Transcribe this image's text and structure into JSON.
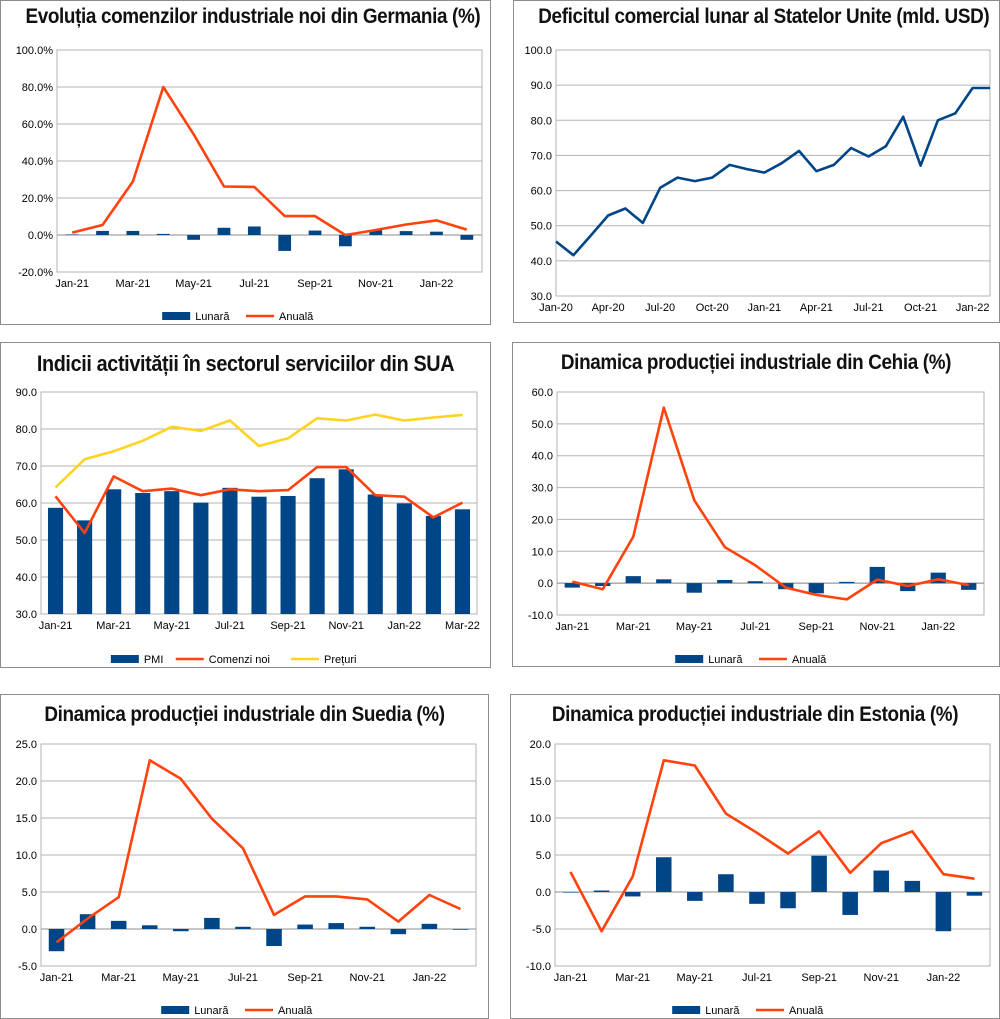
{
  "colors": {
    "bar": "#004586",
    "orange": "#ff420e",
    "yellow": "#ffd320",
    "line": "#004586",
    "grid": "#b3b3b3"
  },
  "chart_data": [
    {
      "id": "germany",
      "type": "bar+line",
      "title": "Evoluția comenzilor industriale noi din Germania (%)",
      "categories": [
        "Jan-21",
        "Feb-21",
        "Mar-21",
        "Apr-21",
        "May-21",
        "Jun-21",
        "Jul-21",
        "Aug-21",
        "Sep-21",
        "Oct-21",
        "Nov-21",
        "Dec-21",
        "Jan-22",
        "Feb-22"
      ],
      "tick_labels": [
        "Jan-21",
        "Mar-21",
        "May-21",
        "Jul-21",
        "Sep-21",
        "Nov-21",
        "Jan-22"
      ],
      "y_ticks": [
        "-20.0%",
        "0.0%",
        "20.0%",
        "40.0%",
        "60.0%",
        "80.0%",
        "100.0%"
      ],
      "ylim": [
        -20,
        100
      ],
      "series": [
        {
          "name": "Lunară",
          "kind": "bar",
          "values": [
            0.3,
            2.2,
            2.2,
            0.6,
            -2.6,
            3.9,
            4.6,
            -8.6,
            2.4,
            -6.1,
            2.6,
            2.1,
            1.8,
            -2.6
          ]
        },
        {
          "name": "Anuală",
          "kind": "line",
          "values": [
            1.3,
            5.4,
            28.9,
            80.0,
            54.5,
            26.2,
            26.0,
            10.2,
            10.2,
            0.0,
            2.7,
            5.7,
            7.9,
            2.9
          ]
        }
      ],
      "legend": [
        "Lunară",
        "Anuală"
      ]
    },
    {
      "id": "usa-deficit",
      "type": "line",
      "title": "Deficitul comercial lunar al Statelor Unite (mld. USD)",
      "categories": [
        "Jan-20",
        "Feb-20",
        "Mar-20",
        "Apr-20",
        "May-20",
        "Jun-20",
        "Jul-20",
        "Aug-20",
        "Sep-20",
        "Oct-20",
        "Nov-20",
        "Dec-20",
        "Jan-21",
        "Feb-21",
        "Mar-21",
        "Apr-21",
        "May-21",
        "Jun-21",
        "Jul-21",
        "Aug-21",
        "Sep-21",
        "Oct-21",
        "Nov-21",
        "Dec-21",
        "Jan-22",
        "Feb-22"
      ],
      "tick_labels": [
        "Jan-20",
        "Apr-20",
        "Jul-20",
        "Oct-20",
        "Jan-21",
        "Apr-21",
        "Jul-21",
        "Oct-21",
        "Jan-22"
      ],
      "y_ticks": [
        "30.0",
        "40.0",
        "50.0",
        "60.0",
        "70.0",
        "80.0",
        "90.0",
        "100.0"
      ],
      "ylim": [
        30,
        100
      ],
      "series": [
        {
          "name": "Deficit",
          "kind": "line",
          "values": [
            45.5,
            41.6,
            47.2,
            52.9,
            54.9,
            50.8,
            60.8,
            63.7,
            62.7,
            63.7,
            67.3,
            66.1,
            65.1,
            67.8,
            71.3,
            65.5,
            67.3,
            72.1,
            69.7,
            72.6,
            81.0,
            67.1,
            80.0,
            82.0,
            89.2,
            89.2
          ]
        }
      ]
    },
    {
      "id": "usa-services",
      "type": "bar+line",
      "title": "Indicii activității în sectorul serviciilor din SUA",
      "categories": [
        "Jan-21",
        "Feb-21",
        "Mar-21",
        "Apr-21",
        "May-21",
        "Jun-21",
        "Jul-21",
        "Aug-21",
        "Sep-21",
        "Oct-21",
        "Nov-21",
        "Dec-21",
        "Jan-22",
        "Feb-22",
        "Mar-22"
      ],
      "tick_labels": [
        "Jan-21",
        "Mar-21",
        "May-21",
        "Jul-21",
        "Sep-21",
        "Nov-21",
        "Jan-22",
        "Mar-22"
      ],
      "y_ticks": [
        "30.0",
        "40.0",
        "50.0",
        "60.0",
        "70.0",
        "80.0",
        "90.0"
      ],
      "ylim": [
        30,
        90
      ],
      "series": [
        {
          "name": "PMI",
          "kind": "bar",
          "values": [
            58.7,
            55.3,
            63.7,
            62.7,
            63.2,
            60.1,
            64.1,
            61.7,
            61.9,
            66.7,
            69.1,
            62.3,
            59.9,
            56.5,
            58.3
          ]
        },
        {
          "name": "Comenzi noi",
          "kind": "line",
          "values": [
            61.8,
            51.9,
            67.2,
            63.2,
            63.9,
            62.1,
            63.7,
            63.2,
            63.5,
            69.7,
            69.7,
            62.1,
            61.7,
            56.1,
            60.1
          ]
        },
        {
          "name": "Prețuri",
          "kind": "line",
          "values": [
            64.2,
            71.8,
            74.0,
            76.8,
            80.6,
            79.5,
            82.3,
            75.4,
            77.5,
            82.9,
            82.3,
            83.9,
            82.3,
            83.1,
            83.8
          ]
        }
      ],
      "legend": [
        "PMI",
        "Comenzi noi",
        "Prețuri"
      ]
    },
    {
      "id": "czech",
      "type": "bar+line",
      "title": "Dinamica producției industriale din Cehia (%)",
      "categories": [
        "Jan-21",
        "Feb-21",
        "Mar-21",
        "Apr-21",
        "May-21",
        "Jun-21",
        "Jul-21",
        "Aug-21",
        "Sep-21",
        "Oct-21",
        "Nov-21",
        "Dec-21",
        "Jan-22",
        "Feb-22"
      ],
      "tick_labels": [
        "Jan-21",
        "Mar-21",
        "May-21",
        "Jul-21",
        "Sep-21",
        "Nov-21",
        "Jan-22"
      ],
      "y_ticks": [
        "-10.0",
        "0.0",
        "10.0",
        "20.0",
        "30.0",
        "40.0",
        "50.0",
        "60.0"
      ],
      "ylim": [
        -10,
        60
      ],
      "series": [
        {
          "name": "Lunară",
          "kind": "bar",
          "values": [
            -1.4,
            -0.9,
            2.2,
            1.2,
            -3.0,
            1.0,
            0.6,
            -1.9,
            -3.2,
            0.4,
            5.1,
            -2.5,
            3.3,
            -2.1
          ]
        },
        {
          "name": "Anuală",
          "kind": "line",
          "values": [
            0.5,
            -1.9,
            14.6,
            55.1,
            26.0,
            11.3,
            5.6,
            -1.4,
            -3.7,
            -5.1,
            1.1,
            -0.9,
            1.2,
            -0.6
          ]
        }
      ],
      "legend": [
        "Lunară",
        "Anuală"
      ]
    },
    {
      "id": "sweden",
      "type": "bar+line",
      "title": "Dinamica producției industriale din Suedia (%)",
      "categories": [
        "Jan-21",
        "Feb-21",
        "Mar-21",
        "Apr-21",
        "May-21",
        "Jun-21",
        "Jul-21",
        "Aug-21",
        "Sep-21",
        "Oct-21",
        "Nov-21",
        "Dec-21",
        "Jan-22",
        "Feb-22"
      ],
      "tick_labels": [
        "Jan-21",
        "Mar-21",
        "May-21",
        "Jul-21",
        "Sep-21",
        "Nov-21",
        "Jan-22"
      ],
      "y_ticks": [
        "-5.0",
        "0.0",
        "5.0",
        "10.0",
        "15.0",
        "20.0",
        "25.0"
      ],
      "ylim": [
        -5,
        25
      ],
      "series": [
        {
          "name": "Lunară",
          "kind": "bar",
          "values": [
            -3.0,
            2.0,
            1.1,
            0.5,
            -0.3,
            1.5,
            0.3,
            -2.3,
            0.6,
            0.8,
            0.3,
            -0.7,
            0.7,
            -0.1
          ]
        },
        {
          "name": "Anuală",
          "kind": "line",
          "values": [
            -1.8,
            1.4,
            4.3,
            22.8,
            20.3,
            14.9,
            10.9,
            1.9,
            4.4,
            4.4,
            4.0,
            1.0,
            4.6,
            2.7
          ]
        }
      ],
      "legend": [
        "Lunară",
        "Anuală"
      ]
    },
    {
      "id": "estonia",
      "type": "bar+line",
      "title": "Dinamica producției industriale din Estonia (%)",
      "categories": [
        "Jan-21",
        "Feb-21",
        "Mar-21",
        "Apr-21",
        "May-21",
        "Jun-21",
        "Jul-21",
        "Aug-21",
        "Sep-21",
        "Oct-21",
        "Nov-21",
        "Dec-21",
        "Jan-22",
        "Feb-22"
      ],
      "tick_labels": [
        "Jan-21",
        "Mar-21",
        "May-21",
        "Jul-21",
        "Sep-21",
        "Nov-21",
        "Jan-22"
      ],
      "y_ticks": [
        "-10.0",
        "-5.0",
        "0.0",
        "5.0",
        "10.0",
        "15.0",
        "20.0"
      ],
      "ylim": [
        -10,
        20
      ],
      "series": [
        {
          "name": "Lunară",
          "kind": "bar",
          "values": [
            0.0,
            0.2,
            -0.6,
            4.7,
            -1.2,
            2.4,
            -1.6,
            -2.2,
            4.9,
            -3.1,
            2.9,
            1.5,
            -5.3,
            -0.5
          ]
        },
        {
          "name": "Anuală",
          "kind": "line",
          "values": [
            2.7,
            -5.3,
            2.1,
            17.8,
            17.1,
            10.6,
            8.0,
            5.2,
            8.2,
            2.6,
            6.6,
            8.2,
            2.4,
            1.8
          ]
        }
      ],
      "legend": [
        "Lunară",
        "Anuală"
      ]
    }
  ]
}
